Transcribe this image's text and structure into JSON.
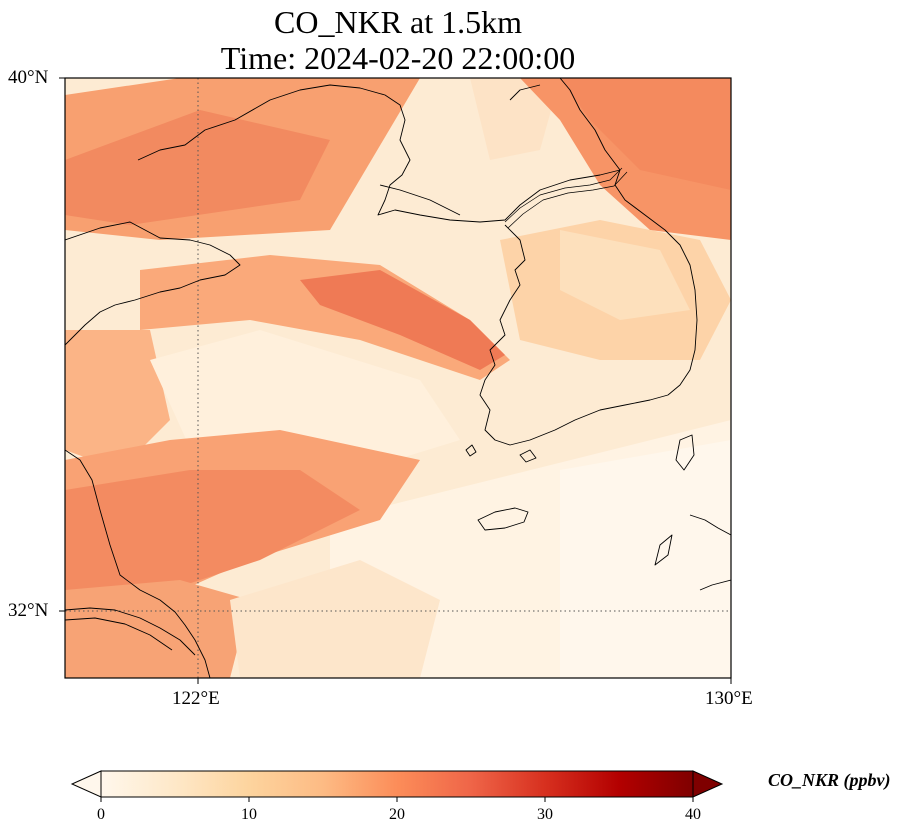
{
  "title": {
    "line1": "CO_NKR at 1.5km",
    "line2": "Time: 2024-02-20 22:00:00"
  },
  "map": {
    "variable": "CO_NKR",
    "level": "1.5km",
    "time": "2024-02-20 22:00:00",
    "extent": {
      "lon_min": 120,
      "lon_max": 130,
      "lat_min": 31,
      "lat_max": 40
    },
    "gridlines": {
      "lon": [
        {
          "value": 122,
          "label": "122°E"
        },
        {
          "value": 130,
          "label": "130°E"
        }
      ],
      "lat": [
        {
          "value": 40,
          "label": "40°N"
        },
        {
          "value": 32,
          "label": "32°N"
        }
      ]
    },
    "colormap": "OrRd",
    "features": [
      "coastline",
      "Jeju Island",
      "Korean Peninsula",
      "Shandong Peninsula",
      "Liaodong Peninsula",
      "Yangtze River estuary"
    ]
  },
  "colorbar": {
    "label": "CO_NKR (ppbv)",
    "min": 0,
    "max": 40,
    "extend": "both",
    "ticks": [
      "0",
      "10",
      "20",
      "30",
      "40"
    ],
    "colors": [
      "#fff7ec",
      "#fee8c8",
      "#fdd49e",
      "#fdbb84",
      "#fc8d59",
      "#ef6548",
      "#d7301f",
      "#b30000",
      "#7f0000"
    ]
  }
}
